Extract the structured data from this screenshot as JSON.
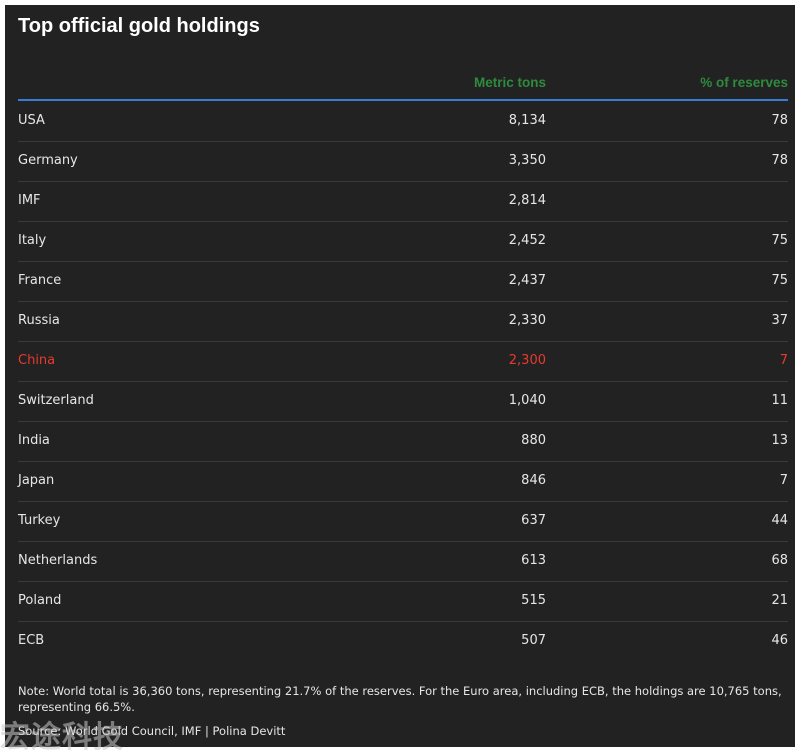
{
  "title": "Top official gold holdings",
  "columns": {
    "country": "",
    "metric_tons": "Metric tons",
    "pct_reserves": "% of reserves"
  },
  "colors": {
    "background": "#222222",
    "header_text": "#2e8b3d",
    "rule": "#3a7bd5",
    "text": "#e6e6e6",
    "highlight": "#e8392f"
  },
  "chart_data": {
    "type": "table",
    "title": "Top official gold holdings",
    "columns": [
      "",
      "Metric tons",
      "% of reserves"
    ],
    "highlight_row": "China",
    "rows": [
      {
        "country": "USA",
        "tons": "8,134",
        "pct": "78"
      },
      {
        "country": "Germany",
        "tons": "3,350",
        "pct": "78"
      },
      {
        "country": "IMF",
        "tons": "2,814",
        "pct": ""
      },
      {
        "country": "Italy",
        "tons": "2,452",
        "pct": "75"
      },
      {
        "country": "France",
        "tons": "2,437",
        "pct": "75"
      },
      {
        "country": "Russia",
        "tons": "2,330",
        "pct": "37"
      },
      {
        "country": "China",
        "tons": "2,300",
        "pct": "7"
      },
      {
        "country": "Switzerland",
        "tons": "1,040",
        "pct": "11"
      },
      {
        "country": "India",
        "tons": "880",
        "pct": "13"
      },
      {
        "country": "Japan",
        "tons": "846",
        "pct": "7"
      },
      {
        "country": "Turkey",
        "tons": "637",
        "pct": "44"
      },
      {
        "country": "Netherlands",
        "tons": "613",
        "pct": "68"
      },
      {
        "country": "Poland",
        "tons": "515",
        "pct": "21"
      },
      {
        "country": "ECB",
        "tons": "507",
        "pct": "46"
      }
    ]
  },
  "note": "Note: World total is 36,360 tons, representing 21.7% of the reserves. For the Euro area, including ECB, the holdings are 10,765 tons, representing 66.5%.",
  "source": "Source: World Gold Council, IMF | Polina Devitt",
  "watermark": "宏途科技"
}
